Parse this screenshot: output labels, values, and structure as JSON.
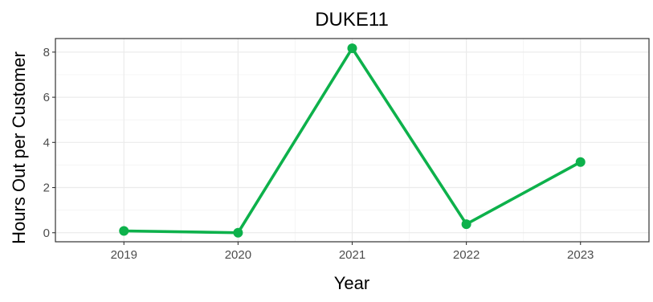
{
  "chart_data": {
    "type": "line",
    "title": "DUKE11",
    "xlabel": "Year",
    "ylabel": "Hours Out per Customer",
    "x": [
      "2019",
      "2020",
      "2021",
      "2022",
      "2023"
    ],
    "series": [
      {
        "values": [
          0.08,
          0.0,
          8.17,
          0.38,
          3.13
        ]
      }
    ],
    "y_ticks": [
      "0",
      "2",
      "4",
      "6",
      "8"
    ],
    "ylim": [
      -0.4,
      8.6
    ],
    "grid": true,
    "legend": "none",
    "colors": {
      "line": "#0DB14B",
      "grid_major": "#EBEBEB",
      "grid_minor": "#F5F5F5",
      "panel_border": "#333333",
      "tick_label": "#4D4D4D"
    }
  }
}
